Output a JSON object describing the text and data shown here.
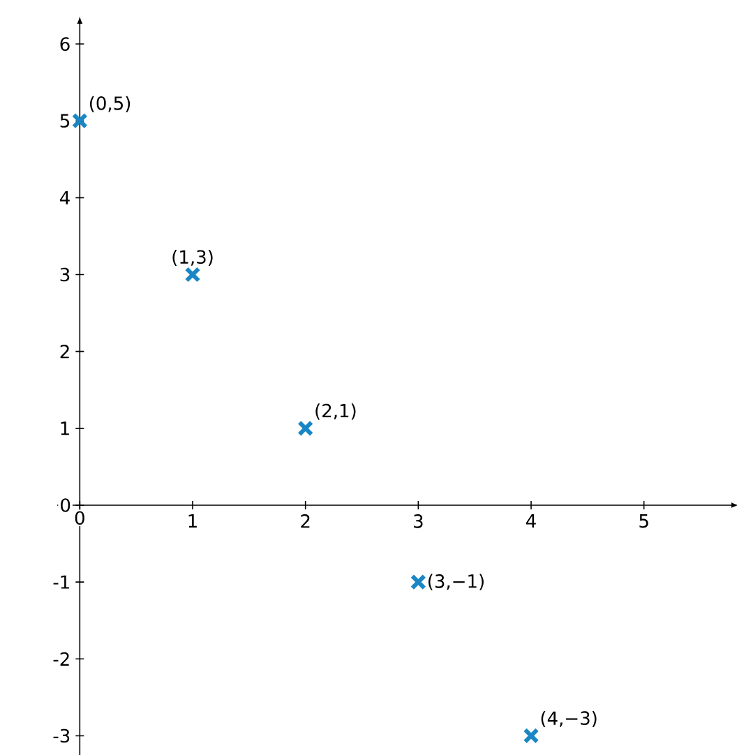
{
  "chart_data": {
    "type": "scatter",
    "x": [
      0,
      1,
      2,
      3,
      4
    ],
    "values": [
      5,
      3,
      1,
      -1,
      -3
    ],
    "color": "#1a87c4",
    "marker": "cross",
    "xlim": [
      -0.2,
      5.8
    ],
    "ylim": [
      -3.25,
      6.3
    ],
    "xticks": [
      0,
      1,
      2,
      3,
      4,
      5
    ],
    "yticks": [
      -3,
      -2,
      -1,
      0,
      1,
      2,
      3,
      4,
      5,
      6
    ],
    "annotations": [
      {
        "text": "(0,5)",
        "x": 0,
        "y": 5
      },
      {
        "text": "(1,3)",
        "x": 1,
        "y": 3
      },
      {
        "text": "(2,1)",
        "x": 2,
        "y": 1
      },
      {
        "text": "(3,−1)",
        "x": 3,
        "y": -1
      },
      {
        "text": "(4,−3)",
        "x": 4,
        "y": -3
      }
    ]
  }
}
